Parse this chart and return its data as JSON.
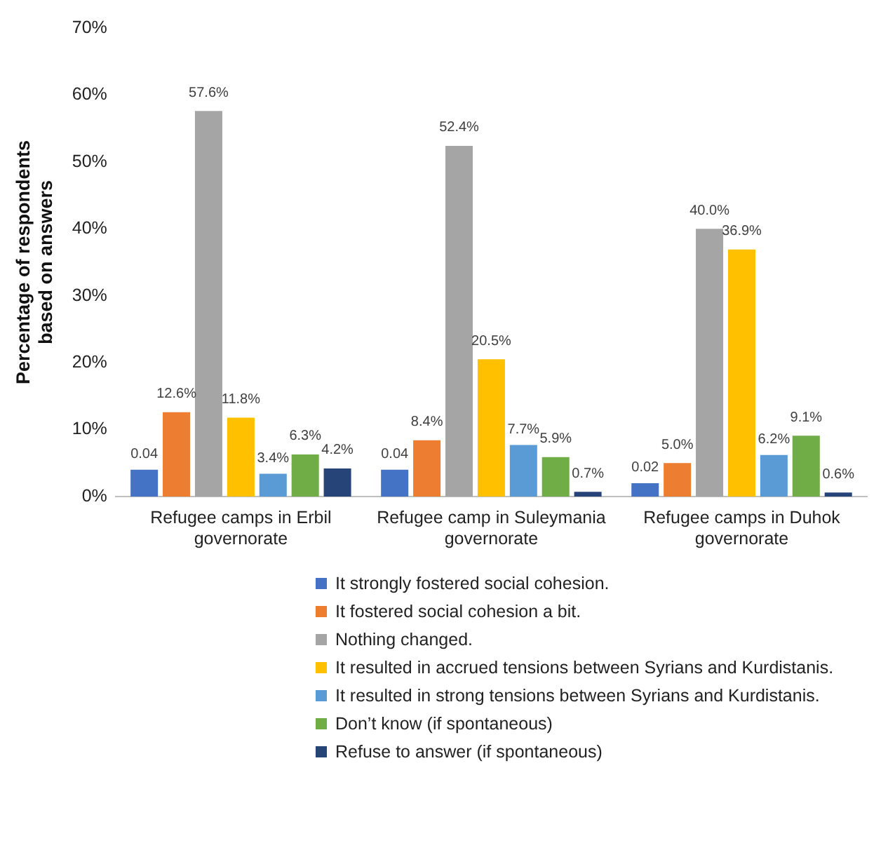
{
  "chart_data": {
    "type": "bar",
    "ylabel": "Percentage of respondents based on answers",
    "categories": [
      "Refugee camps in Erbil governorate",
      "Refugee camp in Suleymania governorate",
      "Refugee camps in Duhok governorate"
    ],
    "series": [
      {
        "name": "It strongly fostered social cohesion.",
        "color": "#4472c4",
        "values": [
          0.04,
          0.04,
          0.02
        ],
        "value_labels": [
          "0.04",
          "0.04",
          "0.02"
        ]
      },
      {
        "name": "It fostered social cohesion a bit.",
        "color": "#ed7d31",
        "values": [
          0.126,
          0.084,
          0.05
        ],
        "value_labels": [
          "12.6%",
          "8.4%",
          "5.0%"
        ]
      },
      {
        "name": "Nothing changed.",
        "color": "#a5a5a5",
        "values": [
          0.576,
          0.524,
          0.4
        ],
        "value_labels": [
          "57.6%",
          "52.4%",
          "40.0%"
        ]
      },
      {
        "name": "It resulted in accrued tensions between Syrians and Kurdistanis.",
        "color": "#ffc000",
        "values": [
          0.118,
          0.205,
          0.369
        ],
        "value_labels": [
          "11.8%",
          "20.5%",
          "36.9%"
        ]
      },
      {
        "name": "It resulted in strong tensions between Syrians and Kurdistanis.",
        "color": "#5b9bd5",
        "values": [
          0.034,
          0.077,
          0.062
        ],
        "value_labels": [
          "3.4%",
          "7.7%",
          "6.2%"
        ]
      },
      {
        "name": "Don’t know (if spontaneous)",
        "color": "#70ad47",
        "values": [
          0.063,
          0.059,
          0.091
        ],
        "value_labels": [
          "6.3%",
          "5.9%",
          "9.1%"
        ]
      },
      {
        "name": "Refuse to answer (if spontaneous)",
        "color": "#264478",
        "values": [
          0.042,
          0.007,
          0.006
        ],
        "value_labels": [
          "4.2%",
          "0.7%",
          "0.6%"
        ]
      }
    ],
    "ylim": [
      0,
      0.7
    ],
    "yticks": [
      {
        "value": 0,
        "label": "0%"
      },
      {
        "value": 0.1,
        "label": "10%"
      },
      {
        "value": 0.2,
        "label": "20%"
      },
      {
        "value": 0.3,
        "label": "30%"
      },
      {
        "value": 0.4,
        "label": "40%"
      },
      {
        "value": 0.5,
        "label": "50%"
      },
      {
        "value": 0.6,
        "label": "60%"
      },
      {
        "value": 0.7,
        "label": "70%"
      }
    ],
    "grid": false,
    "legend": "bottom"
  }
}
